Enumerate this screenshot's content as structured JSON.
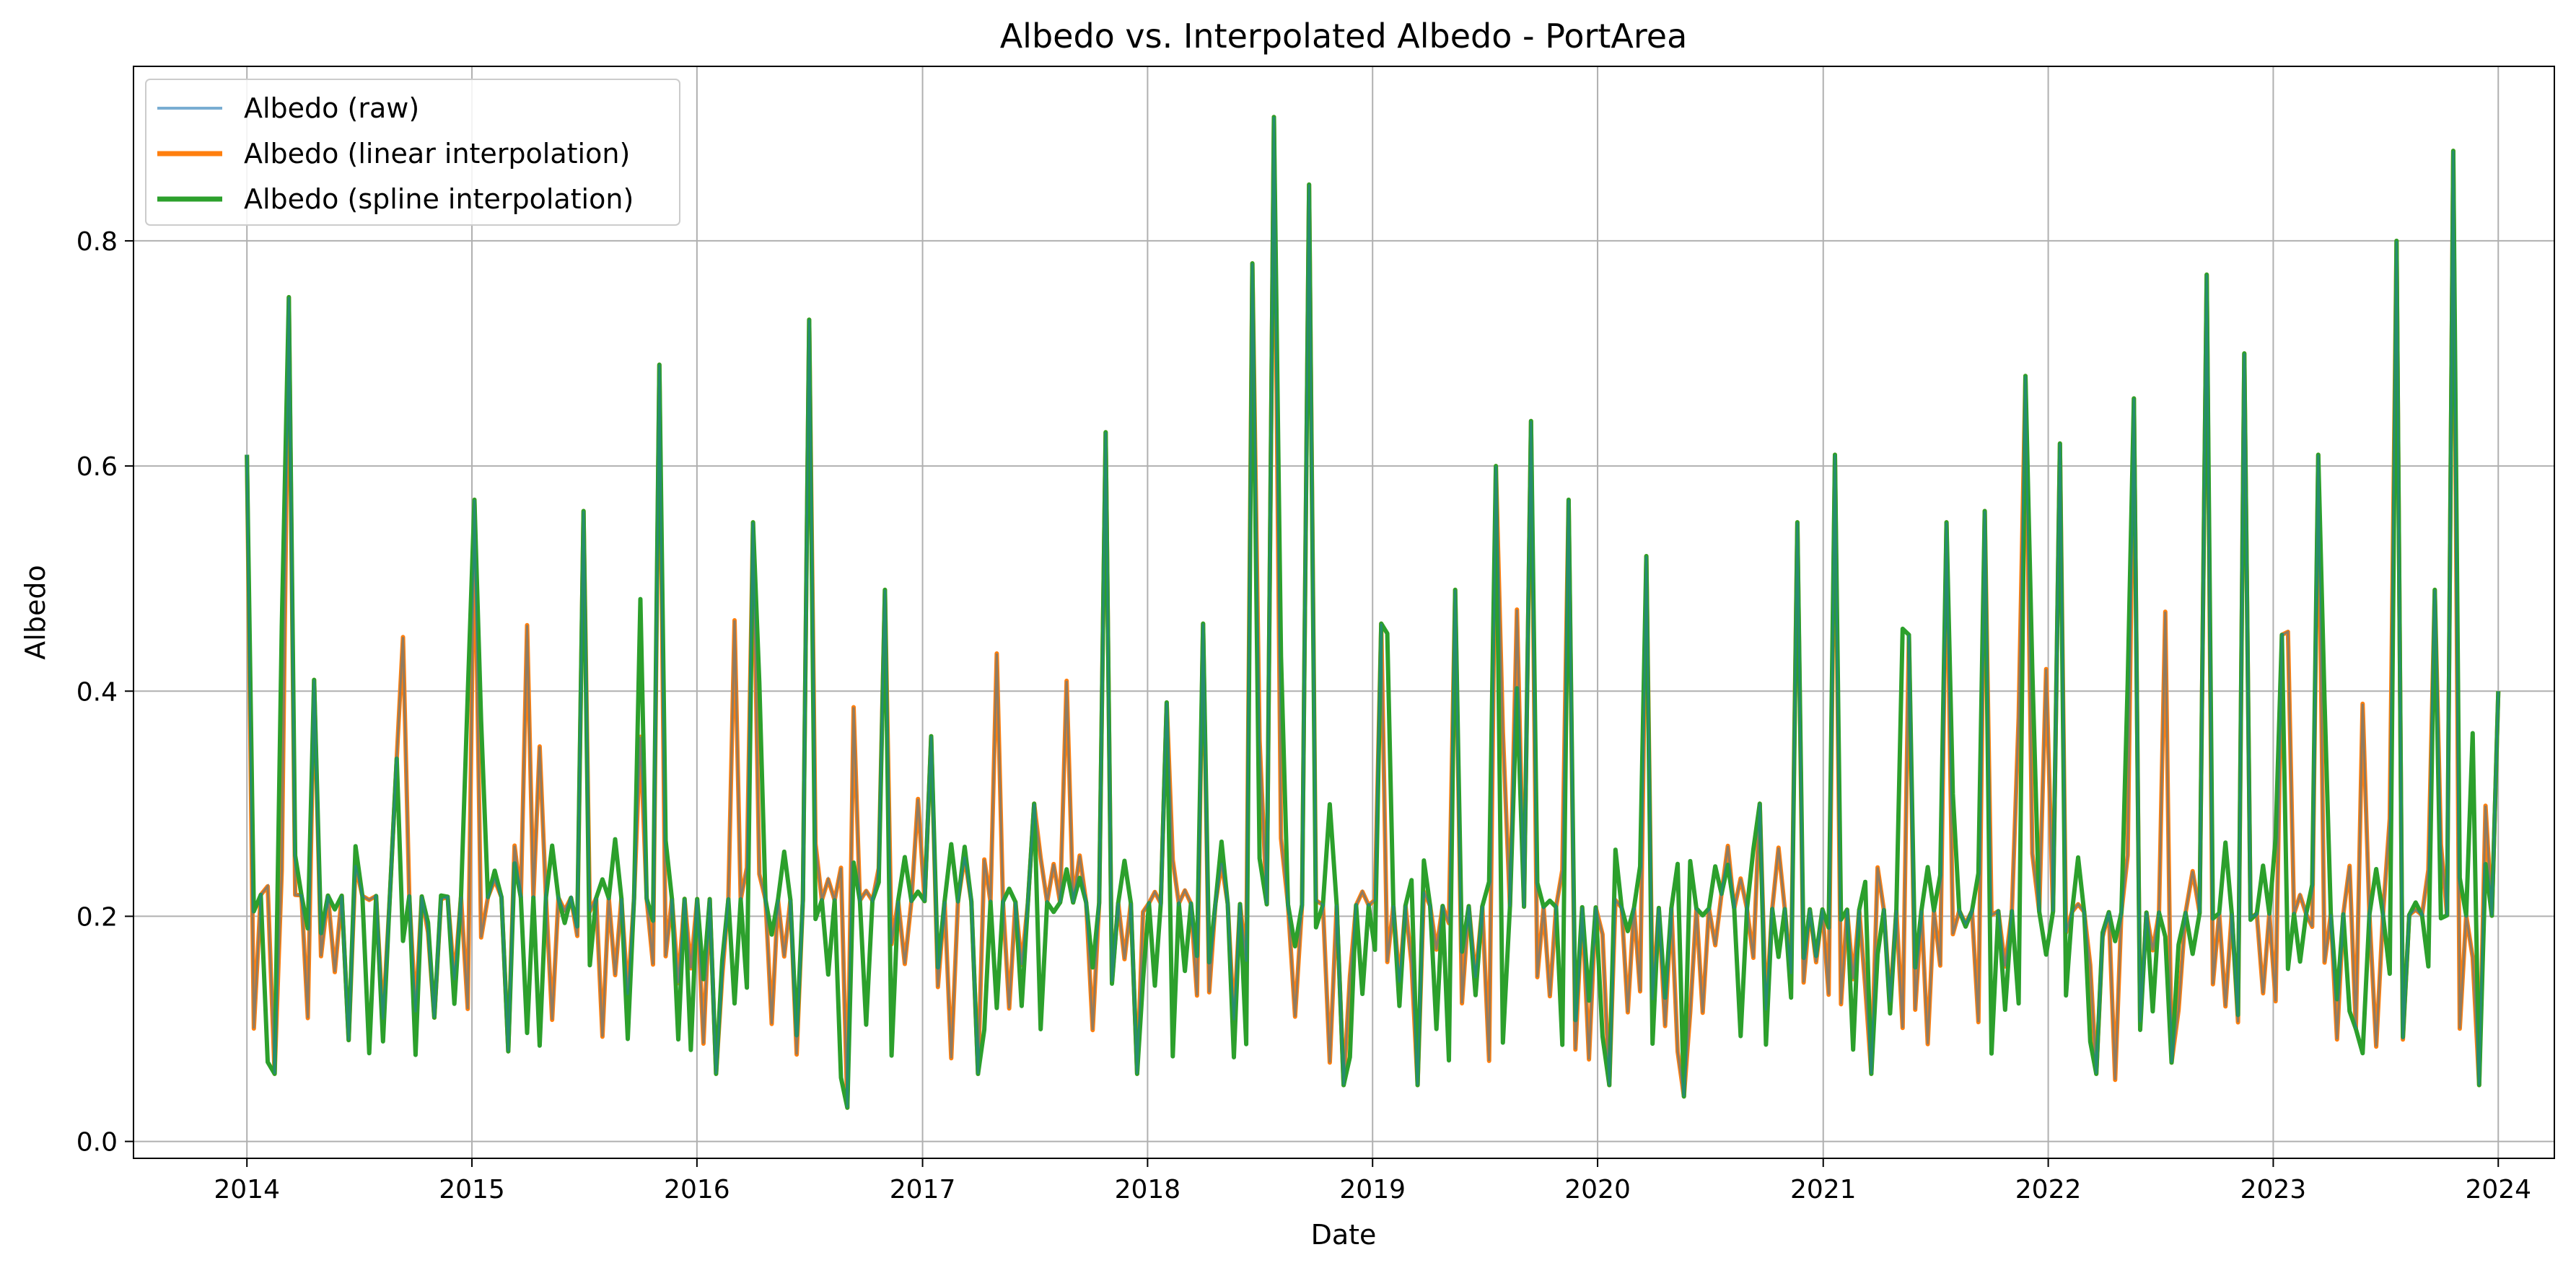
{
  "chart_data": {
    "type": "line",
    "title": "Albedo vs. Interpolated Albedo - PortArea",
    "xlabel": "Date",
    "ylabel": "Albedo",
    "x_ticks": [
      "2014",
      "2015",
      "2016",
      "2017",
      "2018",
      "2019",
      "2020",
      "2021",
      "2022",
      "2023",
      "2024"
    ],
    "y_ticks": [
      "0.0",
      "0.2",
      "0.4",
      "0.6",
      "0.8"
    ],
    "xlim": [
      "2013-07-01",
      "2024-04-01"
    ],
    "ylim": [
      -0.015,
      0.955
    ],
    "grid": true,
    "legend": {
      "position": "top-left"
    },
    "series": [
      {
        "name": "Albedo (raw)",
        "color": "#1f77b4",
        "style": "thin-translucent",
        "x": [
          "2014-01-01",
          "2014-02-15",
          "2014-03-10",
          "2014-04-20",
          "2014-06-15",
          "2014-09-01",
          "2014-11-01",
          "2015-01-05",
          "2015-03-01",
          "2015-07-01",
          "2015-11-01",
          "2016-02-01",
          "2016-04-01",
          "2016-07-01",
          "2016-09-01",
          "2016-11-01",
          "2017-01-15",
          "2017-04-01",
          "2017-07-01",
          "2017-10-25",
          "2017-12-15",
          "2018-02-01",
          "2018-04-01",
          "2018-06-20",
          "2018-07-25",
          "2018-09-20",
          "2018-11-15",
          "2019-01-15",
          "2019-03-15",
          "2019-05-15",
          "2019-07-20",
          "2019-09-15",
          "2019-11-15",
          "2020-01-20",
          "2020-03-20",
          "2020-05-20",
          "2020-07-20",
          "2020-09-20",
          "2020-11-20",
          "2021-01-20",
          "2021-03-20",
          "2021-05-20",
          "2021-07-20",
          "2021-09-20",
          "2021-11-25",
          "2022-01-20",
          "2022-03-20",
          "2022-05-20",
          "2022-07-20",
          "2022-09-15",
          "2022-11-15",
          "2023-01-15",
          "2023-03-15",
          "2023-05-15",
          "2023-07-20",
          "2023-09-20",
          "2023-10-20",
          "2023-12-01",
          "2024-01-01"
        ],
        "values": [
          0.61,
          0.06,
          0.75,
          0.41,
          0.09,
          0.34,
          0.11,
          0.57,
          0.08,
          0.56,
          0.69,
          0.06,
          0.55,
          0.73,
          0.03,
          0.49,
          0.36,
          0.06,
          0.3,
          0.63,
          0.06,
          0.39,
          0.46,
          0.78,
          0.91,
          0.85,
          0.05,
          0.46,
          0.05,
          0.49,
          0.6,
          0.64,
          0.57,
          0.05,
          0.52,
          0.04,
          0.22,
          0.3,
          0.55,
          0.61,
          0.06,
          0.45,
          0.55,
          0.56,
          0.68,
          0.62,
          0.06,
          0.66,
          0.07,
          0.77,
          0.7,
          0.45,
          0.61,
          0.1,
          0.8,
          0.49,
          0.88,
          0.05,
          0.4
        ]
      },
      {
        "name": "Albedo (linear interpolation)",
        "color": "#ff7f0e",
        "style": "thick"
      },
      {
        "name": "Albedo (spline interpolation)",
        "color": "#2ca02c",
        "style": "thick"
      }
    ]
  }
}
